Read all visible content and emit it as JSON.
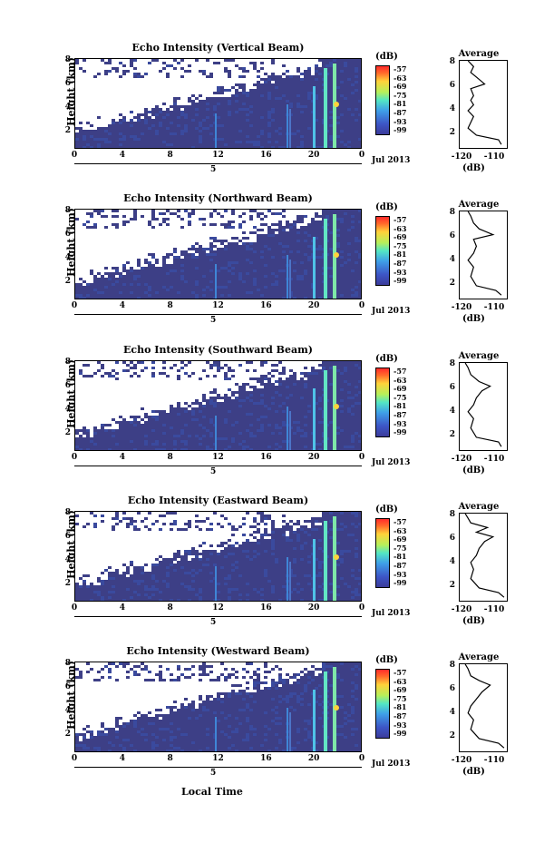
{
  "figure": {
    "xtitle": "Local Time",
    "month_year": "Jul 2013",
    "date_label": "5",
    "colorbar_unit": "(dB)",
    "colorbar_ticks": [
      "-57",
      "-63",
      "-69",
      "-75",
      "-81",
      "-87",
      "-93",
      "-99"
    ],
    "avg_title": "Average",
    "avg_unit": "(dB)",
    "ylabel": "Height (km)"
  },
  "chart_data": [
    {
      "type": "heatmap",
      "title": "Echo Intensity (Vertical Beam)",
      "ylabel": "Height (km)",
      "xlabel": "Local Time",
      "x_ticks": [
        "0",
        "4",
        "8",
        "12",
        "16",
        "20",
        "0"
      ],
      "y_ticks": [
        "8",
        "6",
        "4",
        "2"
      ],
      "ylim": [
        0.5,
        8
      ],
      "zlim": [
        -99,
        -57
      ]
    },
    {
      "type": "heatmap",
      "title": "Echo Intensity (Northward Beam)",
      "ylabel": "Height (km)",
      "xlabel": "Local Time",
      "x_ticks": [
        "0",
        "4",
        "8",
        "12",
        "16",
        "20",
        "0"
      ],
      "y_ticks": [
        "8",
        "6",
        "4",
        "2"
      ],
      "ylim": [
        0.5,
        8
      ],
      "zlim": [
        -99,
        -57
      ]
    },
    {
      "type": "heatmap",
      "title": "Echo Intensity (Southward Beam)",
      "ylabel": "Height (km)",
      "xlabel": "Local Time",
      "x_ticks": [
        "0",
        "4",
        "8",
        "12",
        "16",
        "20",
        "0"
      ],
      "y_ticks": [
        "8",
        "6",
        "4",
        "2"
      ],
      "ylim": [
        0.5,
        8
      ],
      "zlim": [
        -99,
        -57
      ]
    },
    {
      "type": "heatmap",
      "title": "Echo Intensity (Eastward Beam)",
      "ylabel": "Height (km)",
      "xlabel": "Local Time",
      "x_ticks": [
        "0",
        "4",
        "8",
        "12",
        "16",
        "20",
        "0"
      ],
      "y_ticks": [
        "8",
        "6",
        "4",
        "2"
      ],
      "ylim": [
        0.5,
        8
      ],
      "zlim": [
        -99,
        -57
      ]
    },
    {
      "type": "heatmap",
      "title": "Echo Intensity (Westward Beam)",
      "ylabel": "Height (km)",
      "xlabel": "Local Time",
      "x_ticks": [
        "0",
        "4",
        "8",
        "12",
        "16",
        "20",
        "0"
      ],
      "y_ticks": [
        "8",
        "6",
        "4",
        "2"
      ],
      "ylim": [
        0.5,
        8
      ],
      "zlim": [
        -99,
        -57
      ]
    },
    {
      "type": "line",
      "title": "Average",
      "xlabel": "(dB)",
      "x_ticks": [
        "-120",
        "-110"
      ],
      "y_ticks": [
        "8",
        "6",
        "4",
        "2"
      ],
      "xlim": [
        -122,
        -105
      ],
      "ylim": [
        0.5,
        8
      ],
      "series": [
        {
          "values": [
            [
              -107,
              0.8
            ],
            [
              -108,
              1.2
            ],
            [
              -116,
              1.6
            ],
            [
              -119,
              2.2
            ],
            [
              -117,
              3.2
            ],
            [
              -119,
              3.7
            ],
            [
              -117,
              4.2
            ],
            [
              -118,
              4.6
            ],
            [
              -117,
              5.0
            ],
            [
              -118,
              5.6
            ],
            [
              -113,
              6.0
            ],
            [
              -116,
              6.6
            ],
            [
              -118,
              7.0
            ],
            [
              -117,
              7.5
            ],
            [
              -119,
              8.0
            ]
          ]
        }
      ]
    },
    {
      "type": "line",
      "title": "Average",
      "xlabel": "(dB)",
      "x_ticks": [
        "-120",
        "-110"
      ],
      "y_ticks": [
        "8",
        "6",
        "4",
        "2"
      ],
      "xlim": [
        -122,
        -105
      ],
      "ylim": [
        0.5,
        8
      ],
      "series": [
        {
          "values": [
            [
              -107,
              0.8
            ],
            [
              -109,
              1.2
            ],
            [
              -116,
              1.6
            ],
            [
              -118,
              2.4
            ],
            [
              -117,
              3.2
            ],
            [
              -119,
              3.8
            ],
            [
              -117,
              4.4
            ],
            [
              -116,
              5.0
            ],
            [
              -117,
              5.6
            ],
            [
              -110,
              6.0
            ],
            [
              -115,
              6.5
            ],
            [
              -117,
              7.0
            ],
            [
              -118,
              7.6
            ],
            [
              -119,
              8.0
            ]
          ]
        }
      ]
    },
    {
      "type": "line",
      "title": "Average",
      "xlabel": "(dB)",
      "x_ticks": [
        "-120",
        "-110"
      ],
      "y_ticks": [
        "8",
        "6",
        "4",
        "2"
      ],
      "xlim": [
        -122,
        -105
      ],
      "ylim": [
        0.5,
        8
      ],
      "series": [
        {
          "values": [
            [
              -107,
              0.8
            ],
            [
              -108,
              1.2
            ],
            [
              -116,
              1.6
            ],
            [
              -118,
              2.4
            ],
            [
              -117,
              3.2
            ],
            [
              -119,
              3.8
            ],
            [
              -117,
              4.4
            ],
            [
              -116,
              5.0
            ],
            [
              -114,
              5.6
            ],
            [
              -111,
              6.0
            ],
            [
              -115,
              6.4
            ],
            [
              -118,
              7.0
            ],
            [
              -119,
              7.6
            ],
            [
              -120,
              8.0
            ]
          ]
        }
      ]
    },
    {
      "type": "line",
      "title": "Average",
      "xlabel": "(dB)",
      "x_ticks": [
        "-120",
        "-110"
      ],
      "y_ticks": [
        "8",
        "6",
        "4",
        "2"
      ],
      "xlim": [
        -122,
        -105
      ],
      "ylim": [
        0.5,
        8
      ],
      "series": [
        {
          "values": [
            [
              -106,
              0.8
            ],
            [
              -108,
              1.2
            ],
            [
              -115,
              1.6
            ],
            [
              -118,
              2.4
            ],
            [
              -117,
              3.2
            ],
            [
              -118,
              3.8
            ],
            [
              -116,
              4.4
            ],
            [
              -115,
              5.0
            ],
            [
              -113,
              5.6
            ],
            [
              -110,
              6.0
            ],
            [
              -116,
              6.4
            ],
            [
              -112,
              6.8
            ],
            [
              -118,
              7.2
            ],
            [
              -119,
              7.6
            ],
            [
              -120,
              8.0
            ]
          ]
        }
      ]
    },
    {
      "type": "line",
      "title": "Average",
      "xlabel": "(dB)",
      "x_ticks": [
        "-120",
        "-110"
      ],
      "y_ticks": [
        "8",
        "6",
        "4",
        "2"
      ],
      "xlim": [
        -122,
        -105
      ],
      "ylim": [
        0.5,
        8
      ],
      "series": [
        {
          "values": [
            [
              -106,
              0.8
            ],
            [
              -108,
              1.2
            ],
            [
              -115,
              1.6
            ],
            [
              -118,
              2.4
            ],
            [
              -117,
              3.2
            ],
            [
              -119,
              3.8
            ],
            [
              -118,
              4.4
            ],
            [
              -116,
              5.0
            ],
            [
              -114,
              5.6
            ],
            [
              -111,
              6.2
            ],
            [
              -115,
              6.6
            ],
            [
              -118,
              7.0
            ],
            [
              -119,
              7.6
            ],
            [
              -120,
              8.0
            ]
          ]
        }
      ]
    }
  ]
}
